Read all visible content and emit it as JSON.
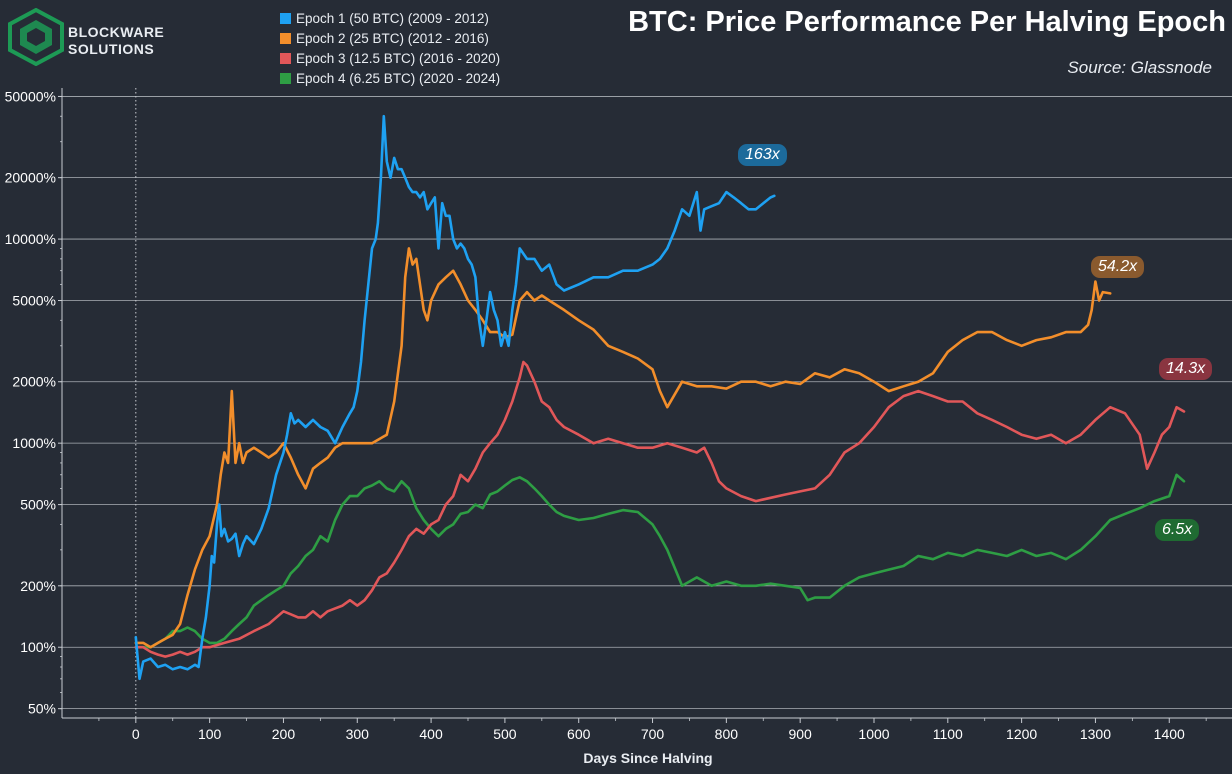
{
  "brand": {
    "line1": "BLOCKWARE",
    "line2": "SOLUTIONS",
    "accent": "#1d9a55"
  },
  "title": "BTC: Price Performance Per Halving Epoch",
  "source": "Source: Glassnode",
  "legend": [
    {
      "label": "Epoch 1 (50 BTC) (2009 - 2012)",
      "color": "#1ea1f2"
    },
    {
      "label": "Epoch 2 (25 BTC) (2012 - 2016)",
      "color": "#f28e2b"
    },
    {
      "label": "Epoch 3 (12.5 BTC) (2016 - 2020)",
      "color": "#e15759"
    },
    {
      "label": "Epoch 4 (6.25 BTC) (2020 - 2024)",
      "color": "#2e9e44"
    }
  ],
  "annotations": [
    {
      "text": "163x",
      "bg": "#1c6a9b"
    },
    {
      "text": "54.2x",
      "bg": "#8a5a2e"
    },
    {
      "text": "14.3x",
      "bg": "#8a3540"
    },
    {
      "text": "6.5x",
      "bg": "#1f6b32"
    }
  ],
  "chart_data": {
    "type": "line",
    "title": "BTC: Price Performance Per Halving Epoch",
    "xlabel": "Days Since Halving",
    "ylabel": "",
    "yscale": "log",
    "xlim": [
      -100,
      1485
    ],
    "ylim": [
      45,
      55000
    ],
    "xticks": [
      0,
      100,
      200,
      300,
      400,
      500,
      600,
      700,
      800,
      900,
      1000,
      1100,
      1200,
      1300,
      1400
    ],
    "yticks": [
      50,
      100,
      200,
      500,
      1000,
      2000,
      5000,
      10000,
      20000,
      50000
    ],
    "ytick_labels": [
      "50%",
      "100%",
      "200%",
      "500%",
      "1000%",
      "2000%",
      "5000%",
      "10000%",
      "20000%",
      "50000%"
    ],
    "grid": "horizontal",
    "reference_line": {
      "x": 0,
      "style": "dotted"
    },
    "legend_position": "top-left",
    "series": [
      {
        "name": "Epoch 1 (50 BTC) (2009 - 2012)",
        "color": "#1ea1f2",
        "x": [
          0,
          5,
          10,
          20,
          30,
          40,
          50,
          60,
          70,
          80,
          85,
          90,
          95,
          100,
          103,
          106,
          110,
          113,
          116,
          120,
          125,
          130,
          135,
          140,
          145,
          150,
          160,
          170,
          180,
          190,
          200,
          205,
          210,
          215,
          220,
          230,
          240,
          250,
          260,
          270,
          280,
          290,
          295,
          300,
          305,
          310,
          315,
          320,
          325,
          328,
          332,
          336,
          340,
          345,
          350,
          355,
          360,
          365,
          370,
          375,
          380,
          385,
          390,
          395,
          400,
          405,
          410,
          415,
          420,
          425,
          430,
          435,
          440,
          445,
          450,
          455,
          460,
          465,
          470,
          475,
          480,
          485,
          490,
          495,
          500,
          505,
          510,
          515,
          520,
          530,
          540,
          550,
          560,
          570,
          580,
          600,
          620,
          640,
          660,
          680,
          700,
          710,
          720,
          730,
          740,
          750,
          760,
          765,
          770,
          780,
          790,
          800,
          810,
          820,
          830,
          840,
          850,
          860,
          865
        ],
        "y": [
          112,
          70,
          85,
          88,
          80,
          82,
          78,
          80,
          78,
          82,
          80,
          110,
          140,
          200,
          280,
          260,
          400,
          500,
          350,
          380,
          330,
          340,
          360,
          280,
          320,
          350,
          320,
          380,
          480,
          700,
          900,
          1100,
          1400,
          1250,
          1300,
          1200,
          1300,
          1200,
          1150,
          1000,
          1200,
          1400,
          1500,
          1800,
          2500,
          4000,
          6000,
          9000,
          10000,
          12000,
          20000,
          40000,
          24000,
          20000,
          25000,
          22000,
          22000,
          20000,
          18000,
          17000,
          17000,
          16000,
          17000,
          14000,
          15000,
          16000,
          9000,
          15000,
          13000,
          13000,
          10000,
          9000,
          9500,
          9000,
          8000,
          7500,
          6500,
          4000,
          3000,
          4000,
          5500,
          4500,
          4000,
          3000,
          3500,
          3000,
          4500,
          6000,
          9000,
          8000,
          8000,
          7000,
          7500,
          6000,
          5600,
          6000,
          6500,
          6500,
          7000,
          7000,
          7500,
          8000,
          9000,
          11000,
          14000,
          13000,
          17000,
          11000,
          14000,
          14500,
          15000,
          17000,
          16000,
          15000,
          14000,
          14000,
          15000,
          16000,
          16300
        ]
      },
      {
        "name": "Epoch 2 (25 BTC) (2012 - 2016)",
        "color": "#f28e2b",
        "x": [
          0,
          10,
          20,
          30,
          40,
          50,
          60,
          70,
          80,
          90,
          100,
          110,
          115,
          120,
          125,
          130,
          135,
          140,
          145,
          150,
          160,
          170,
          180,
          190,
          200,
          210,
          220,
          230,
          240,
          250,
          260,
          270,
          280,
          300,
          320,
          340,
          350,
          360,
          365,
          370,
          375,
          380,
          385,
          390,
          395,
          400,
          410,
          420,
          430,
          440,
          450,
          460,
          470,
          480,
          490,
          500,
          510,
          520,
          530,
          540,
          550,
          560,
          580,
          600,
          620,
          640,
          660,
          680,
          700,
          710,
          720,
          740,
          760,
          780,
          800,
          820,
          840,
          860,
          880,
          900,
          920,
          940,
          960,
          980,
          1000,
          1020,
          1040,
          1060,
          1080,
          1100,
          1120,
          1140,
          1160,
          1180,
          1200,
          1220,
          1240,
          1260,
          1280,
          1290,
          1295,
          1300,
          1305,
          1310,
          1320
        ],
        "y": [
          105,
          105,
          100,
          105,
          110,
          115,
          130,
          180,
          240,
          300,
          350,
          500,
          700,
          900,
          800,
          1800,
          800,
          1000,
          800,
          900,
          950,
          900,
          850,
          900,
          1000,
          850,
          700,
          600,
          750,
          800,
          850,
          950,
          1000,
          1000,
          1000,
          1100,
          1600,
          3000,
          6500,
          9000,
          7500,
          8000,
          6000,
          4500,
          4000,
          5000,
          6000,
          6500,
          7000,
          6000,
          5000,
          4500,
          4000,
          3500,
          3500,
          3300,
          3400,
          5000,
          5500,
          5000,
          5300,
          5000,
          4500,
          4000,
          3600,
          3000,
          2800,
          2600,
          2300,
          1800,
          1500,
          2000,
          1900,
          1900,
          1850,
          2000,
          2000,
          1900,
          2000,
          1950,
          2200,
          2100,
          2300,
          2200,
          2000,
          1800,
          1900,
          2000,
          2200,
          2800,
          3200,
          3500,
          3500,
          3200,
          3000,
          3200,
          3300,
          3500,
          3500,
          3800,
          4500,
          6200,
          5000,
          5500,
          5420
        ]
      },
      {
        "name": "Epoch 3 (12.5 BTC) (2016 - 2020)",
        "color": "#e15759",
        "x": [
          0,
          10,
          20,
          30,
          40,
          50,
          60,
          70,
          80,
          90,
          100,
          120,
          140,
          160,
          180,
          200,
          210,
          220,
          230,
          240,
          250,
          260,
          270,
          280,
          290,
          300,
          310,
          320,
          330,
          340,
          350,
          360,
          370,
          380,
          390,
          400,
          410,
          420,
          430,
          440,
          450,
          460,
          470,
          480,
          490,
          500,
          510,
          520,
          525,
          530,
          540,
          550,
          560,
          570,
          580,
          600,
          620,
          640,
          660,
          680,
          700,
          720,
          740,
          760,
          770,
          780,
          790,
          800,
          820,
          840,
          860,
          880,
          900,
          920,
          940,
          960,
          980,
          1000,
          1020,
          1040,
          1060,
          1080,
          1100,
          1120,
          1140,
          1160,
          1180,
          1200,
          1220,
          1240,
          1260,
          1280,
          1300,
          1320,
          1340,
          1360,
          1370,
          1380,
          1390,
          1400,
          1410,
          1420
        ],
        "y": [
          100,
          100,
          95,
          92,
          90,
          92,
          95,
          92,
          95,
          100,
          100,
          105,
          110,
          120,
          130,
          150,
          145,
          140,
          140,
          150,
          140,
          150,
          155,
          160,
          170,
          160,
          170,
          190,
          220,
          230,
          260,
          300,
          350,
          380,
          360,
          400,
          420,
          500,
          550,
          700,
          650,
          750,
          900,
          1000,
          1100,
          1300,
          1600,
          2100,
          2500,
          2400,
          2000,
          1600,
          1500,
          1300,
          1200,
          1100,
          1000,
          1050,
          1000,
          950,
          950,
          1000,
          950,
          900,
          950,
          800,
          650,
          600,
          550,
          520,
          540,
          560,
          580,
          600,
          700,
          900,
          1000,
          1200,
          1500,
          1700,
          1800,
          1700,
          1600,
          1600,
          1400,
          1300,
          1200,
          1100,
          1050,
          1100,
          1000,
          1100,
          1300,
          1500,
          1400,
          1100,
          750,
          900,
          1100,
          1200,
          1500,
          1430
        ]
      },
      {
        "name": "Epoch 4 (6.25 BTC) (2020 - 2024)",
        "color": "#2e9e44",
        "x": [
          0,
          10,
          20,
          30,
          40,
          50,
          60,
          70,
          80,
          90,
          100,
          110,
          120,
          130,
          140,
          150,
          160,
          170,
          180,
          190,
          200,
          210,
          220,
          230,
          240,
          250,
          260,
          270,
          280,
          290,
          300,
          310,
          320,
          330,
          340,
          350,
          360,
          370,
          380,
          390,
          400,
          410,
          420,
          430,
          440,
          450,
          460,
          470,
          480,
          490,
          500,
          510,
          520,
          530,
          540,
          550,
          560,
          570,
          580,
          600,
          620,
          640,
          660,
          680,
          700,
          710,
          720,
          740,
          760,
          780,
          800,
          820,
          840,
          860,
          880,
          900,
          910,
          920,
          940,
          960,
          980,
          1000,
          1020,
          1040,
          1060,
          1080,
          1100,
          1120,
          1140,
          1160,
          1180,
          1200,
          1220,
          1240,
          1260,
          1280,
          1300,
          1320,
          1340,
          1360,
          1380,
          1400,
          1410,
          1420
        ],
        "y": [
          100,
          100,
          100,
          105,
          110,
          120,
          120,
          125,
          120,
          110,
          105,
          105,
          110,
          120,
          130,
          140,
          160,
          170,
          180,
          190,
          200,
          230,
          250,
          280,
          300,
          350,
          330,
          420,
          500,
          550,
          550,
          600,
          620,
          650,
          600,
          580,
          650,
          600,
          480,
          420,
          380,
          350,
          380,
          400,
          450,
          460,
          500,
          480,
          560,
          580,
          620,
          660,
          680,
          650,
          600,
          550,
          500,
          460,
          440,
          420,
          430,
          450,
          470,
          460,
          400,
          350,
          300,
          200,
          220,
          200,
          210,
          200,
          200,
          205,
          200,
          195,
          170,
          175,
          175,
          200,
          220,
          230,
          240,
          250,
          280,
          270,
          290,
          280,
          300,
          290,
          280,
          300,
          280,
          290,
          270,
          300,
          350,
          420,
          450,
          480,
          520,
          550,
          700,
          650
        ]
      }
    ],
    "annotations": [
      {
        "text": "163x",
        "series": "Epoch 1 (50 BTC) (2009 - 2012)"
      },
      {
        "text": "54.2x",
        "series": "Epoch 2 (25 BTC) (2012 - 2016)"
      },
      {
        "text": "14.3x",
        "series": "Epoch 3 (12.5 BTC) (2016 - 2020)"
      },
      {
        "text": "6.5x",
        "series": "Epoch 4 (6.25 BTC) (2020 - 2024)"
      }
    ]
  }
}
